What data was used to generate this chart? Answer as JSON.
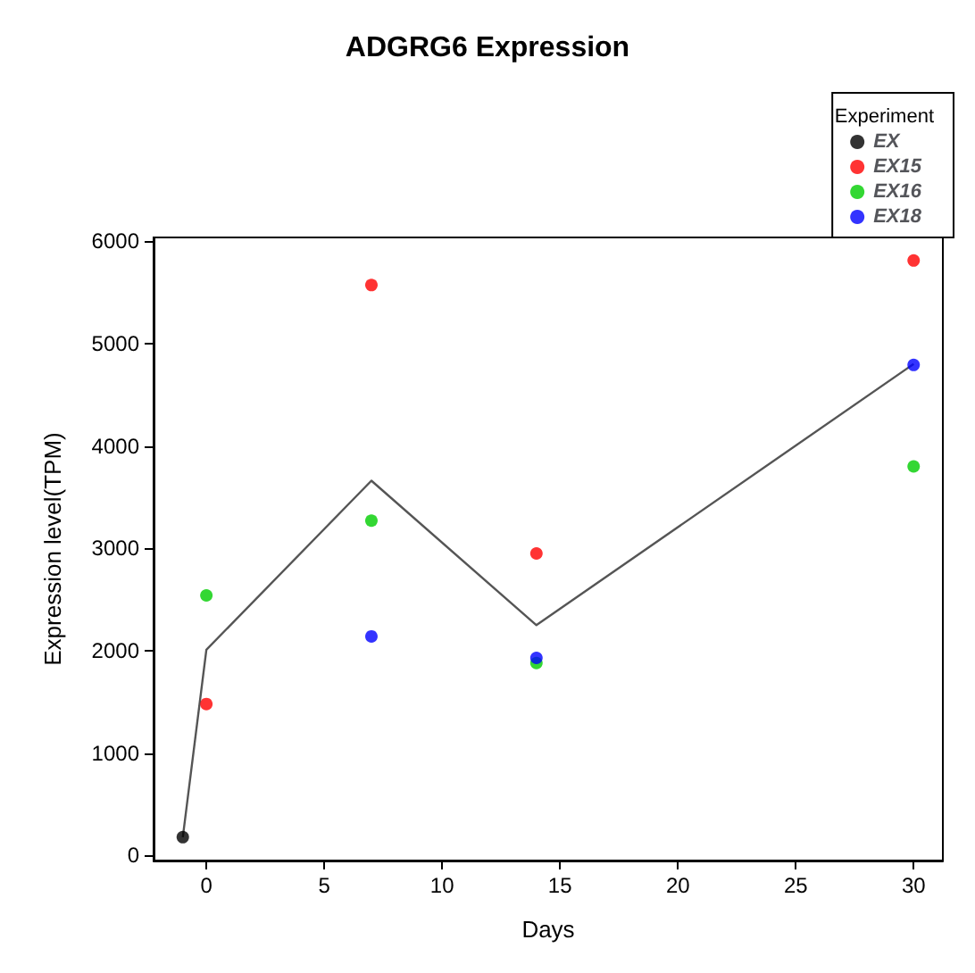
{
  "chart_data": {
    "type": "scatter",
    "title": "ADGRG6 Expression",
    "xlabel": "Days",
    "ylabel": "Expression level(TPM)",
    "legend_title": "Experiment",
    "legend": "top right",
    "grid": false,
    "marker": "circle",
    "xlim": [
      -2.24,
      31.24
    ],
    "xticks": [
      0,
      5,
      10,
      15,
      20,
      25,
      30
    ],
    "ylim": [
      -48,
      6035
    ],
    "yticks": [
      0,
      1000,
      2000,
      3000,
      4000,
      5000,
      6000
    ],
    "series": [
      {
        "type": "line",
        "color": "#555555",
        "marker": "none",
        "x": [
          -1,
          0,
          7,
          14,
          30
        ],
        "values": [
          180,
          2010,
          3660,
          2250,
          4800
        ]
      },
      {
        "name": "EX",
        "color": "#000000",
        "x": [
          -1
        ],
        "values": [
          180
        ]
      },
      {
        "name": "EX15",
        "color": "#ff0000",
        "x": [
          0,
          7,
          14,
          30
        ],
        "values": [
          1480,
          5570,
          2950,
          5810
        ]
      },
      {
        "name": "EX16",
        "color": "#00cd00",
        "x": [
          0,
          7,
          14,
          30
        ],
        "values": [
          2540,
          3270,
          1880,
          3800
        ]
      },
      {
        "name": "EX18",
        "color": "#0000ff",
        "x": [
          7,
          14,
          30
        ],
        "values": [
          2140,
          1930,
          4790
        ]
      }
    ]
  }
}
